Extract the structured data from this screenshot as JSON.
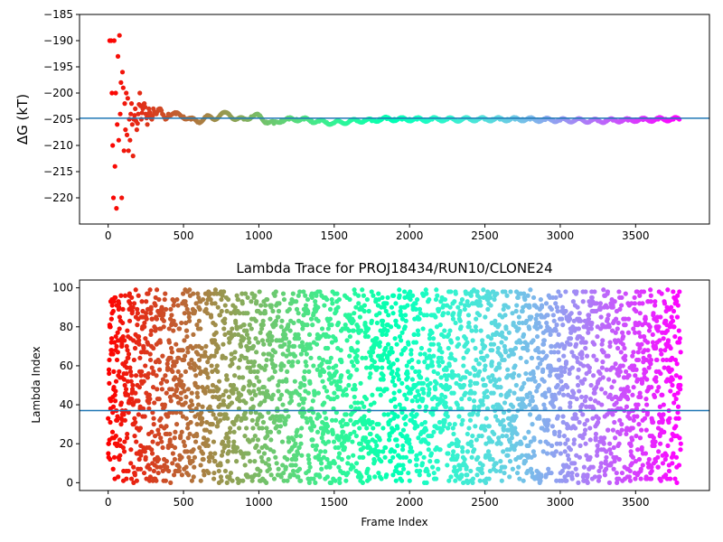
{
  "chart_data": [
    {
      "type": "scatter",
      "title": "",
      "xlabel": "",
      "ylabel": "ΔG (kT)",
      "xlim": [
        -190,
        3990
      ],
      "ylim": [
        -225,
        -185
      ],
      "xticks": [
        0,
        500,
        1000,
        1500,
        2000,
        2500,
        3000,
        3500
      ],
      "yticks": [
        -220,
        -215,
        -210,
        -205,
        -200,
        -195,
        -190,
        -185
      ],
      "xtick_labels": [
        "0",
        "500",
        "1000",
        "1500",
        "2000",
        "2500",
        "3000",
        "3500"
      ],
      "ytick_labels": [
        "−220",
        "−215",
        "−210",
        "−205",
        "−200",
        "−195",
        "−190",
        "−185"
      ],
      "grid": false,
      "colormap": "rainbow",
      "reference_line": {
        "y": -204.8,
        "color": "#1f77b4"
      },
      "points": [
        [
          10,
          -190
        ],
        [
          20,
          -190
        ],
        [
          25,
          -200
        ],
        [
          30,
          -210
        ],
        [
          35,
          -220
        ],
        [
          40,
          -190
        ],
        [
          45,
          -214
        ],
        [
          50,
          -200
        ],
        [
          55,
          -222
        ],
        [
          60,
          -206
        ],
        [
          65,
          -193
        ],
        [
          70,
          -209
        ],
        [
          75,
          -189
        ],
        [
          80,
          -204
        ],
        [
          85,
          -198
        ],
        [
          90,
          -220
        ],
        [
          95,
          -196
        ],
        [
          100,
          -199
        ],
        [
          105,
          -211
        ],
        [
          110,
          -202
        ],
        [
          115,
          -207
        ],
        [
          120,
          -200
        ],
        [
          125,
          -208
        ],
        [
          130,
          -201
        ],
        [
          135,
          -211
        ],
        [
          140,
          -205
        ],
        [
          145,
          -209
        ],
        [
          150,
          -204
        ],
        [
          155,
          -202
        ],
        [
          160,
          -206
        ],
        [
          165,
          -212
        ],
        [
          170,
          -205
        ],
        [
          180,
          -203
        ],
        [
          190,
          -207
        ],
        [
          200,
          -204
        ],
        [
          210,
          -200
        ],
        [
          220,
          -205
        ],
        [
          230,
          -203
        ],
        [
          240,
          -202
        ],
        [
          250,
          -204
        ],
        [
          260,
          -206
        ],
        [
          270,
          -203
        ],
        [
          280,
          -204
        ],
        [
          290,
          -205
        ],
        [
          300,
          -203
        ],
        [
          320,
          -204
        ],
        [
          340,
          -203
        ],
        [
          360,
          -204
        ],
        [
          380,
          -205
        ],
        [
          400,
          -204
        ],
        [
          450,
          -204
        ],
        [
          500,
          -204.5
        ],
        [
          550,
          -205
        ],
        [
          600,
          -205.5
        ],
        [
          650,
          -204.5
        ],
        [
          700,
          -205
        ],
        [
          750,
          -204
        ],
        [
          800,
          -204
        ],
        [
          850,
          -205
        ],
        [
          900,
          -205
        ],
        [
          950,
          -204.5
        ],
        [
          1000,
          -204.3
        ],
        [
          1050,
          -205.5
        ],
        [
          1100,
          -205.8
        ],
        [
          1150,
          -205.2
        ],
        [
          1200,
          -205
        ],
        [
          1250,
          -205
        ],
        [
          1300,
          -205
        ],
        [
          1350,
          -205.3
        ],
        [
          1400,
          -205.4
        ],
        [
          1450,
          -205.6
        ],
        [
          1500,
          -205.7
        ],
        [
          1550,
          -205.6
        ],
        [
          1600,
          -205.4
        ],
        [
          1650,
          -205.3
        ],
        [
          1700,
          -205.2
        ],
        [
          1750,
          -205.3
        ],
        [
          1800,
          -205
        ],
        [
          1850,
          -204.9
        ],
        [
          1900,
          -205
        ],
        [
          1950,
          -205
        ],
        [
          2000,
          -205
        ],
        [
          2050,
          -205
        ],
        [
          2100,
          -205.1
        ],
        [
          2150,
          -205
        ],
        [
          2200,
          -205
        ],
        [
          2250,
          -205
        ],
        [
          2300,
          -205.1
        ],
        [
          2350,
          -205
        ],
        [
          2400,
          -205
        ],
        [
          2450,
          -205
        ],
        [
          2500,
          -205
        ],
        [
          2550,
          -205
        ],
        [
          2600,
          -205
        ],
        [
          2650,
          -205
        ],
        [
          2700,
          -205
        ],
        [
          2750,
          -205
        ],
        [
          2800,
          -205
        ],
        [
          2850,
          -205.1
        ],
        [
          2900,
          -205.1
        ],
        [
          2950,
          -205.1
        ],
        [
          3000,
          -205.2
        ],
        [
          3050,
          -205.2
        ],
        [
          3100,
          -205.2
        ],
        [
          3150,
          -205.2
        ],
        [
          3200,
          -205.3
        ],
        [
          3250,
          -205.3
        ],
        [
          3300,
          -205.3
        ],
        [
          3350,
          -205.2
        ],
        [
          3400,
          -205.2
        ],
        [
          3450,
          -205.2
        ],
        [
          3500,
          -205.1
        ],
        [
          3550,
          -205.1
        ],
        [
          3600,
          -205.1
        ],
        [
          3650,
          -205
        ],
        [
          3700,
          -205
        ],
        [
          3750,
          -205
        ],
        [
          3790,
          -205
        ]
      ]
    },
    {
      "type": "scatter",
      "title": "Lambda Trace for PROJ18434/RUN10/CLONE24",
      "xlabel": "Frame Index",
      "ylabel": "Lambda Index",
      "xlim": [
        -190,
        3990
      ],
      "ylim": [
        -4,
        104
      ],
      "xticks": [
        0,
        500,
        1000,
        1500,
        2000,
        2500,
        3000,
        3500
      ],
      "yticks": [
        0,
        20,
        40,
        60,
        80,
        100
      ],
      "xtick_labels": [
        "0",
        "500",
        "1000",
        "1500",
        "2000",
        "2500",
        "3000",
        "3500"
      ],
      "ytick_labels": [
        "0",
        "20",
        "40",
        "60",
        "80",
        "100"
      ],
      "grid": false,
      "colormap": "rainbow",
      "reference_line": {
        "y": 37,
        "color": "#1f77b4"
      },
      "x_range": [
        0,
        3800
      ],
      "y_range": [
        0,
        99
      ],
      "n_points": 3800
    }
  ]
}
